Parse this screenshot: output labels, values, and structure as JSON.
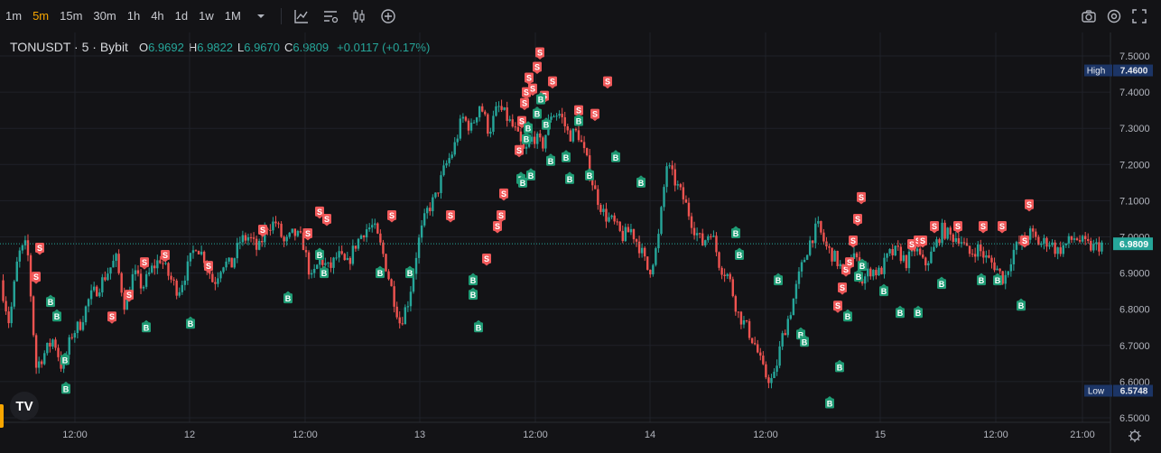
{
  "toolbar": {
    "timeframes": [
      "1m",
      "5m",
      "15m",
      "30m",
      "1h",
      "4h",
      "1d",
      "1w",
      "1M"
    ],
    "active": "5m",
    "icons": [
      "dropdown-caret-icon",
      "indicators-icon",
      "chart-style-icon",
      "candles-icon",
      "add-icon"
    ],
    "right_icons": [
      "camera-icon",
      "settings-icon",
      "fullscreen-icon"
    ]
  },
  "legend": {
    "symbol": "TONUSDT · 5 · Bybit",
    "open_label": "O",
    "open": "6.9692",
    "high_label": "H",
    "high": "6.9822",
    "low_label": "L",
    "low": "6.9670",
    "close_label": "C",
    "close": "6.9809",
    "change": "+0.0117 (+0.17%)"
  },
  "logo_text": "TV",
  "colors": {
    "up": "#26a69a",
    "down": "#ef5350",
    "background": "#131316",
    "grid": "#1f2128",
    "sell_marker": "#f0595a",
    "buy_marker": "#1f9c75",
    "price_tag": "#26a69a",
    "range_tag": "#1c3566"
  },
  "chart_data": {
    "type": "candlestick",
    "symbol": "TONUSDT",
    "interval": "5",
    "exchange": "Bybit",
    "y_axis": {
      "min": 6.5,
      "max": 7.5,
      "ticks": [
        "7.5000",
        "7.4000",
        "7.3000",
        "7.2000",
        "7.1000",
        "7.0000",
        "6.9000",
        "6.8000",
        "6.7000",
        "6.6000",
        "6.5000"
      ]
    },
    "x_axis": {
      "ticks": [
        "12:00",
        "12",
        "12:00",
        "13",
        "12:00",
        "14",
        "12:00",
        "15",
        "12:00",
        "21:00"
      ]
    },
    "last_price": 6.9809,
    "last_price_label": "6.9809",
    "high": {
      "label": "High",
      "value": 7.46,
      "value_label": "7.4600"
    },
    "low": {
      "label": "Low",
      "value": 6.5748,
      "value_label": "6.5748"
    },
    "price_path": [
      6.88,
      6.76,
      6.95,
      6.98,
      6.64,
      6.68,
      6.72,
      6.63,
      6.73,
      6.76,
      6.83,
      6.86,
      6.9,
      6.94,
      6.81,
      6.9,
      6.86,
      6.91,
      6.94,
      6.89,
      6.85,
      6.91,
      6.98,
      6.94,
      6.87,
      6.93,
      6.92,
      6.99,
      7.0,
      6.96,
      7.03,
      7.04,
      6.98,
      7.01,
      6.99,
      6.88,
      6.94,
      6.91,
      6.95,
      6.92,
      6.98,
      7.02,
      7.03,
      6.96,
      6.86,
      6.76,
      6.83,
      6.98,
      7.07,
      7.11,
      7.19,
      7.24,
      7.33,
      7.3,
      7.37,
      7.29,
      7.36,
      7.33,
      7.29,
      7.23,
      7.28,
      7.25,
      7.34,
      7.34,
      7.28,
      7.29,
      7.21,
      7.12,
      7.06,
      7.04,
      7.0,
      7.02,
      6.97,
      6.9,
      6.98,
      7.2,
      7.15,
      7.1,
      7.03,
      6.98,
      7.02,
      6.92,
      6.89,
      6.79,
      6.75,
      6.7,
      6.62,
      6.6,
      6.72,
      6.8,
      6.9,
      6.98,
      7.03,
      6.97,
      6.94,
      6.9,
      6.96,
      6.88,
      6.91,
      6.9,
      6.95,
      6.96,
      6.93,
      6.97,
      6.92,
      6.96,
      7.02,
      7.0,
      7.0,
      6.95,
      6.97,
      6.94,
      6.92,
      6.88,
      6.96,
      6.99,
      7.01,
      6.98,
      6.99,
      6.96,
      6.98,
      7.0,
      6.98,
      6.97,
      6.98
    ],
    "markers": {
      "sell": [
        [
          40,
          6.89
        ],
        [
          44,
          6.97
        ],
        [
          124,
          6.78
        ],
        [
          143,
          6.84
        ],
        [
          160,
          6.93
        ],
        [
          183,
          6.95
        ],
        [
          231,
          6.92
        ],
        [
          291,
          7.02
        ],
        [
          341,
          7.01
        ],
        [
          354,
          7.07
        ],
        [
          362,
          7.05
        ],
        [
          434,
          7.06
        ],
        [
          499,
          7.06
        ],
        [
          539,
          6.94
        ],
        [
          551,
          7.03
        ],
        [
          555,
          7.06
        ],
        [
          558,
          7.12
        ],
        [
          575,
          7.24
        ],
        [
          578,
          7.32
        ],
        [
          581,
          7.37
        ],
        [
          583,
          7.4
        ],
        [
          586,
          7.44
        ],
        [
          590,
          7.41
        ],
        [
          595,
          7.47
        ],
        [
          598,
          7.51
        ],
        [
          603,
          7.39
        ],
        [
          612,
          7.43
        ],
        [
          641,
          7.35
        ],
        [
          659,
          7.34
        ],
        [
          673,
          7.43
        ],
        [
          928,
          6.81
        ],
        [
          933,
          6.86
        ],
        [
          937,
          6.91
        ],
        [
          941,
          6.93
        ],
        [
          945,
          6.99
        ],
        [
          950,
          7.05
        ],
        [
          954,
          7.11
        ],
        [
          1010,
          6.98
        ],
        [
          1017,
          6.99
        ],
        [
          1022,
          6.99
        ],
        [
          1035,
          7.03
        ],
        [
          1061,
          7.03
        ],
        [
          1089,
          7.03
        ],
        [
          1110,
          7.03
        ],
        [
          1135,
          6.99
        ],
        [
          1140,
          7.09
        ]
      ],
      "buy": [
        [
          56,
          6.82
        ],
        [
          63,
          6.78
        ],
        [
          72,
          6.66
        ],
        [
          73,
          6.58
        ],
        [
          162,
          6.75
        ],
        [
          211,
          6.76
        ],
        [
          319,
          6.83
        ],
        [
          354,
          6.95
        ],
        [
          359,
          6.9
        ],
        [
          421,
          6.9
        ],
        [
          454,
          6.9
        ],
        [
          524,
          6.88
        ],
        [
          524,
          6.84
        ],
        [
          530,
          6.75
        ],
        [
          577,
          7.16
        ],
        [
          579,
          7.15
        ],
        [
          583,
          7.27
        ],
        [
          585,
          7.3
        ],
        [
          588,
          7.17
        ],
        [
          595,
          7.34
        ],
        [
          599,
          7.38
        ],
        [
          605,
          7.31
        ],
        [
          610,
          7.21
        ],
        [
          627,
          7.22
        ],
        [
          631,
          7.16
        ],
        [
          641,
          7.32
        ],
        [
          653,
          7.17
        ],
        [
          682,
          7.22
        ],
        [
          710,
          7.15
        ],
        [
          815,
          7.01
        ],
        [
          819,
          6.95
        ],
        [
          862,
          6.88
        ],
        [
          887,
          6.73
        ],
        [
          891,
          6.71
        ],
        [
          919,
          6.54
        ],
        [
          930,
          6.64
        ],
        [
          939,
          6.78
        ],
        [
          951,
          6.89
        ],
        [
          955,
          6.92
        ],
        [
          979,
          6.85
        ],
        [
          997,
          6.79
        ],
        [
          1017,
          6.79
        ],
        [
          1043,
          6.87
        ],
        [
          1087,
          6.88
        ],
        [
          1105,
          6.88
        ],
        [
          1131,
          6.81
        ]
      ]
    }
  }
}
